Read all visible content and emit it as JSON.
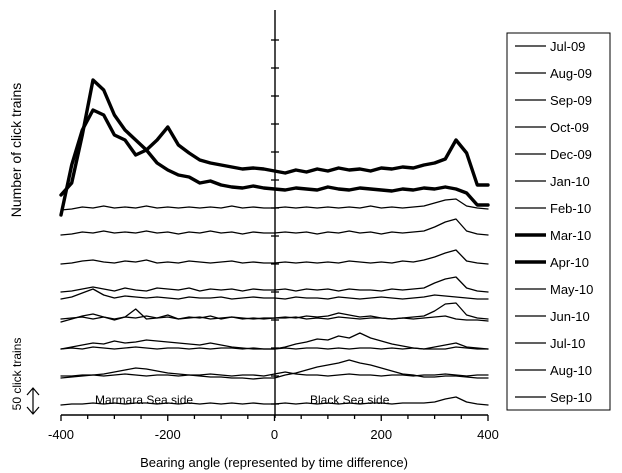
{
  "chart_data": {
    "type": "line",
    "xlabel": "Bearing angle (represented by time difference)",
    "ylabel": "Number of click trains",
    "xlim": [
      -400,
      400
    ],
    "x_ticks": [
      -400,
      -200,
      0,
      200,
      400
    ],
    "x_tick_labels": [
      "-400",
      "-200",
      "0",
      "200",
      "400"
    ],
    "scale_bar_label": "50 click trains",
    "annotations": {
      "left": "Marmara Sea side",
      "right": "Black Sea side"
    },
    "legend_position": "right",
    "grid": false,
    "x": [
      -400,
      -380,
      -360,
      -340,
      -320,
      -300,
      -280,
      -260,
      -240,
      -220,
      -200,
      -180,
      -160,
      -140,
      -120,
      -100,
      -80,
      -60,
      -40,
      -20,
      0,
      20,
      40,
      60,
      80,
      100,
      120,
      140,
      160,
      180,
      200,
      220,
      240,
      260,
      280,
      300,
      320,
      340,
      360,
      380,
      400
    ],
    "series": [
      {
        "name": "Jul-09",
        "bold": false,
        "values": [
          39,
          39,
          40,
          40,
          39,
          40,
          41,
          40,
          39,
          40,
          40,
          39,
          40,
          40,
          41,
          40,
          39,
          40,
          40,
          39,
          41,
          43,
          41,
          40,
          40,
          39,
          40,
          41,
          40,
          40,
          39,
          40,
          40,
          39,
          40,
          40,
          41,
          40,
          39,
          40,
          40
        ]
      },
      {
        "name": "Aug-09",
        "bold": false,
        "values": [
          66,
          67,
          66,
          68,
          67,
          66,
          67,
          68,
          67,
          66,
          67,
          67,
          66,
          67,
          66,
          67,
          67,
          66,
          67,
          66,
          66,
          67,
          66,
          67,
          67,
          66,
          67,
          66,
          67,
          67,
          66,
          67,
          66,
          67,
          66,
          68,
          70,
          72,
          68,
          67,
          66
        ]
      },
      {
        "name": "Sep-09",
        "bold": false,
        "values": [
          96,
          97,
          98,
          96,
          98,
          95,
          98,
          106,
          96,
          97,
          100,
          96,
          98,
          97,
          99,
          96,
          98,
          96,
          97,
          96,
          97,
          97,
          98,
          96,
          97,
          96,
          98,
          97,
          96,
          97,
          97,
          96,
          97,
          98,
          99,
          104,
          111,
          112,
          100,
          97,
          96
        ]
      },
      {
        "name": "Oct-09",
        "bold": false,
        "values": [
          123,
          124,
          126,
          128,
          126,
          124,
          127,
          125,
          124,
          127,
          126,
          125,
          127,
          124,
          126,
          125,
          126,
          124,
          126,
          125,
          125,
          126,
          124,
          126,
          125,
          126,
          124,
          126,
          125,
          125,
          124,
          126,
          125,
          126,
          127,
          132,
          136,
          138,
          127,
          124,
          123
        ]
      },
      {
        "name": "Dec-09",
        "bold": false,
        "values": [
          151,
          152,
          154,
          155,
          153,
          152,
          154,
          153,
          155,
          152,
          153,
          152,
          154,
          153,
          152,
          153,
          154,
          152,
          153,
          152,
          152,
          153,
          152,
          153,
          152,
          153,
          152,
          154,
          153,
          152,
          153,
          152,
          154,
          153,
          155,
          158,
          162,
          165,
          154,
          152,
          151
        ]
      },
      {
        "name": "Jan-10",
        "bold": false,
        "values": [
          180,
          181,
          183,
          182,
          184,
          182,
          183,
          182,
          184,
          182,
          183,
          181,
          183,
          182,
          184,
          182,
          183,
          181,
          183,
          182,
          182,
          183,
          182,
          183,
          181,
          183,
          182,
          184,
          182,
          183,
          181,
          183,
          182,
          183,
          184,
          188,
          193,
          196,
          184,
          181,
          180
        ]
      },
      {
        "name": "Feb-10",
        "bold": false,
        "values": [
          205,
          206,
          208,
          207,
          209,
          207,
          208,
          207,
          209,
          207,
          208,
          207,
          208,
          207,
          208,
          207,
          209,
          207,
          208,
          207,
          207,
          208,
          207,
          208,
          207,
          208,
          207,
          208,
          207,
          209,
          207,
          208,
          207,
          208,
          209,
          212,
          215,
          216,
          209,
          207,
          206
        ]
      },
      {
        "name": "Mar-10",
        "bold": true,
        "values": [
          220,
          232,
          280,
          335,
          325,
          300,
          285,
          275,
          265,
          275,
          288,
          270,
          262,
          255,
          252,
          250,
          248,
          246,
          247,
          246,
          244,
          242,
          245,
          243,
          246,
          244,
          247,
          245,
          246,
          244,
          247,
          246,
          248,
          247,
          250,
          252,
          256,
          275,
          262,
          230,
          230
        ]
      },
      {
        "name": "Apr-10",
        "bold": true,
        "values": [
          200,
          250,
          285,
          305,
          300,
          280,
          275,
          260,
          265,
          252,
          245,
          240,
          238,
          232,
          234,
          230,
          228,
          227,
          229,
          227,
          226,
          225,
          227,
          226,
          225,
          228,
          226,
          225,
          227,
          226,
          225,
          224,
          226,
          225,
          227,
          226,
          228,
          226,
          222,
          210,
          210
        ]
      },
      {
        "name": "May-10",
        "bold": false,
        "values": [
          116,
          118,
          122,
          126,
          120,
          117,
          119,
          118,
          117,
          118,
          117,
          116,
          118,
          117,
          117,
          118,
          116,
          117,
          118,
          117,
          117,
          116,
          118,
          117,
          117,
          116,
          118,
          117,
          116,
          117,
          118,
          117,
          116,
          117,
          118,
          120,
          119,
          118,
          117,
          116,
          116
        ]
      },
      {
        "name": "Jun-10",
        "bold": false,
        "values": [
          93,
          96,
          99,
          101,
          98,
          96,
          98,
          97,
          99,
          97,
          98,
          96,
          97,
          98,
          96,
          97,
          98,
          97,
          96,
          97,
          97,
          98,
          97,
          99,
          98,
          99,
          102,
          100,
          98,
          99,
          97,
          96,
          97,
          96,
          97,
          98,
          99,
          96,
          95,
          95,
          94
        ]
      },
      {
        "name": "Jul-10",
        "bold": false,
        "values": [
          66,
          68,
          70,
          72,
          71,
          74,
          72,
          73,
          75,
          74,
          73,
          72,
          71,
          70,
          72,
          70,
          68,
          67,
          66,
          66,
          66,
          68,
          71,
          73,
          76,
          75,
          79,
          77,
          82,
          77,
          74,
          71,
          69,
          67,
          66,
          66,
          66,
          68,
          67,
          66,
          66
        ]
      },
      {
        "name": "Aug-10",
        "bold": false,
        "values": [
          37,
          38,
          39,
          40,
          41,
          43,
          45,
          47,
          46,
          44,
          42,
          41,
          40,
          39,
          38,
          38,
          37,
          37,
          36,
          37,
          37,
          40,
          42,
          45,
          48,
          50,
          52,
          55,
          52,
          50,
          47,
          44,
          41,
          40,
          38,
          38,
          39,
          39,
          38,
          37,
          37
        ]
      },
      {
        "name": "Sep-10",
        "bold": false,
        "values": [
          10,
          11,
          11,
          12,
          11,
          12,
          11,
          12,
          12,
          11,
          12,
          11,
          12,
          11,
          12,
          11,
          12,
          11,
          12,
          11,
          11,
          12,
          11,
          12,
          11,
          12,
          11,
          12,
          11,
          12,
          12,
          11,
          12,
          12,
          12,
          13,
          16,
          18,
          13,
          11,
          10
        ]
      }
    ]
  }
}
